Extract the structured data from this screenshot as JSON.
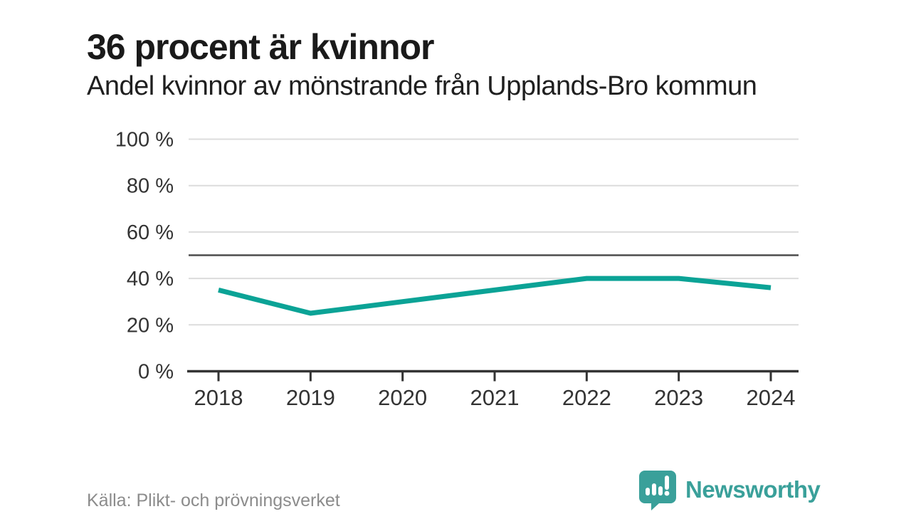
{
  "header": {
    "title": "36 procent är kvinnor",
    "subtitle": "Andel kvinnor av mönstrande från Upplands-Bro kommun"
  },
  "chart_data": {
    "type": "line",
    "title": "36 procent är kvinnor",
    "subtitle": "Andel kvinnor av mönstrande från Upplands-Bro kommun",
    "x": [
      "2018",
      "2019",
      "2020",
      "2021",
      "2022",
      "2023",
      "2024"
    ],
    "series": [
      {
        "name": "Andel kvinnor av mönstrande",
        "values": [
          35,
          25,
          30,
          35,
          40,
          40,
          36
        ]
      }
    ],
    "ylim": [
      0,
      100
    ],
    "yticks": [
      {
        "value": 0,
        "label": "0 %"
      },
      {
        "value": 20,
        "label": "20 %"
      },
      {
        "value": 40,
        "label": "40 %"
      },
      {
        "value": 60,
        "label": "60 %"
      },
      {
        "value": 80,
        "label": "80 %"
      },
      {
        "value": 100,
        "label": "100 %"
      }
    ],
    "reference_line": {
      "value": 50
    },
    "grid": true,
    "legend_position": "none",
    "xlabel": "",
    "ylabel": ""
  },
  "footer": {
    "source": "Källa: Plikt- och prövningsverket",
    "brand": "Newsworthy"
  },
  "colors": {
    "line": "#0ba396",
    "brand": "#3aa09a",
    "grid": "#dcdcdc",
    "reference": "#4d4d4d",
    "axis": "#333333",
    "tick_text": "#333333",
    "title_text": "#1a1a1a",
    "muted_text": "#8c8c8c",
    "background": "#ffffff"
  }
}
